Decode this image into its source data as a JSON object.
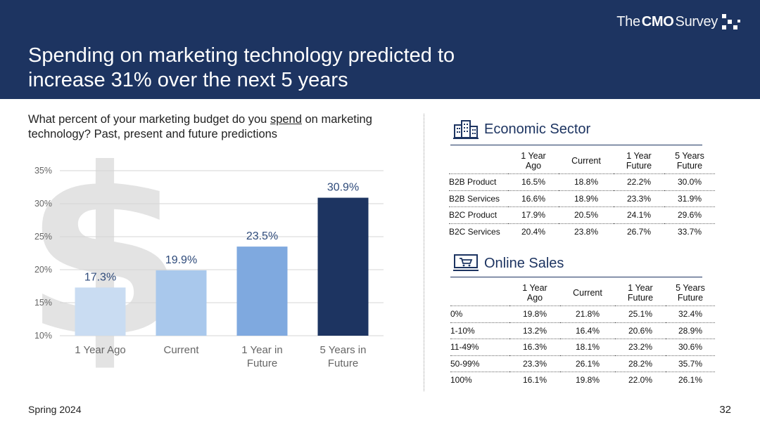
{
  "header": {
    "title": "Spending on marketing technology predicted to\nincrease 31% over the next 5 years",
    "logo_the": "The",
    "logo_cmo": "CMO",
    "logo_survey": "Survey"
  },
  "question": {
    "before": "What percent of your marketing budget do you ",
    "underlined": "spend",
    "after": " on marketing\ntechnology? Past, present and future predictions"
  },
  "chart_data": {
    "type": "bar",
    "categories": [
      "1 Year Ago",
      "Current",
      "1 Year in Future",
      "5 Years in Future"
    ],
    "category_lines": [
      [
        "1 Year Ago"
      ],
      [
        "Current"
      ],
      [
        "1 Year in",
        "Future"
      ],
      [
        "5 Years in",
        "Future"
      ]
    ],
    "values": [
      17.3,
      19.9,
      23.5,
      30.9
    ],
    "value_labels": [
      "17.3%",
      "19.9%",
      "23.5%",
      "30.9%"
    ],
    "bar_colors": [
      "#c9dcf2",
      "#a9c8ec",
      "#7fa9df",
      "#1d3461"
    ],
    "yticks": [
      10,
      15,
      20,
      25,
      30,
      35
    ],
    "ytick_labels": [
      "10%",
      "15%",
      "20%",
      "25%",
      "30%",
      "35%"
    ],
    "ylim": [
      10,
      35
    ],
    "grid": true,
    "background_glyph": "$"
  },
  "economic_sector": {
    "title": "Economic Sector",
    "icon": "building-icon",
    "columns": [
      "1 Year\nAgo",
      "Current",
      "1 Year\nFuture",
      "5 Years\nFuture"
    ],
    "rows": [
      {
        "label": "B2B Product",
        "values": [
          "16.5%",
          "18.8%",
          "22.2%",
          "30.0%"
        ]
      },
      {
        "label": "B2B Services",
        "values": [
          "16.6%",
          "18.9%",
          "23.3%",
          "31.9%"
        ]
      },
      {
        "label": "B2C Product",
        "values": [
          "17.9%",
          "20.5%",
          "24.1%",
          "29.6%"
        ]
      },
      {
        "label": "B2C Services",
        "values": [
          "20.4%",
          "23.8%",
          "26.7%",
          "33.7%"
        ]
      }
    ]
  },
  "online_sales": {
    "title": "Online Sales",
    "icon": "shopping-cart-icon",
    "columns": [
      "1 Year\nAgo",
      "Current",
      "1 Year\nFuture",
      "5 Years\nFuture"
    ],
    "rows": [
      {
        "label": "0%",
        "values": [
          "19.8%",
          "21.8%",
          "25.1%",
          "32.4%"
        ]
      },
      {
        "label": "1-10%",
        "values": [
          "13.2%",
          "16.4%",
          "20.6%",
          "28.9%"
        ]
      },
      {
        "label": "11-49%",
        "values": [
          "16.3%",
          "18.1%",
          "23.2%",
          "30.6%"
        ]
      },
      {
        "label": "50-99%",
        "values": [
          "23.3%",
          "26.1%",
          "28.2%",
          "35.7%"
        ]
      },
      {
        "label": "100%",
        "values": [
          "16.1%",
          "19.8%",
          "22.0%",
          "26.1%"
        ]
      }
    ]
  },
  "footer": {
    "left": "Spring 2024",
    "page_number": "32"
  }
}
